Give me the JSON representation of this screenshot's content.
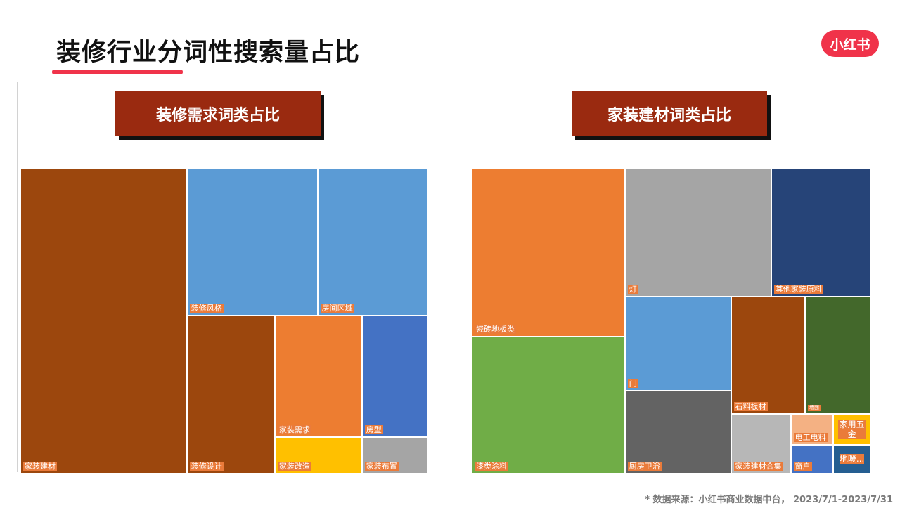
{
  "page": {
    "title": "装修行业分词性搜索量占比",
    "logo": "小红书",
    "source": "* 数据来源：小红书商业数据中台， 2023/7/1-2023/7/31"
  },
  "colors": {
    "accent": "#f0334a",
    "badge": "#9a2a10",
    "label_bg": "#ea7b3a"
  },
  "chart_data": [
    {
      "type": "treemap",
      "title": "装修需求词类占比",
      "items": [
        {
          "name": "家装建材",
          "value": 41.0,
          "color": "#9c470d"
        },
        {
          "name": "装修风格",
          "value": 15.5,
          "color": "#5b9bd5"
        },
        {
          "name": "房间区域",
          "value": 13.0,
          "color": "#5b9bd5"
        },
        {
          "name": "装修设计",
          "value": 9.5,
          "color": "#9c470d"
        },
        {
          "name": "家装需求",
          "value": 8.0,
          "color": "#ed7d31"
        },
        {
          "name": "家装改造",
          "value": 2.5,
          "color": "#ffc000"
        },
        {
          "name": "房型",
          "value": 6.0,
          "color": "#4472c4"
        },
        {
          "name": "家装布置",
          "value": 2.0,
          "color": "#a5a5a5"
        }
      ]
    },
    {
      "type": "treemap",
      "title": "家装建材词类占比",
      "items": [
        {
          "name": "瓷砖地板类",
          "value": 20.5,
          "color": "#ed7d31"
        },
        {
          "name": "漆类涂料",
          "value": 18.0,
          "color": "#70ad47"
        },
        {
          "name": "灯",
          "value": 14.0,
          "color": "#a5a5a5"
        },
        {
          "name": "其他家装原料",
          "value": 9.0,
          "color": "#264478"
        },
        {
          "name": "门",
          "value": 7.5,
          "color": "#5b9bd5"
        },
        {
          "name": "厨房卫浴",
          "value": 6.5,
          "color": "#636363"
        },
        {
          "name": "石料板材",
          "value": 6.5,
          "color": "#9c470d"
        },
        {
          "name": "墙面",
          "value": 5.5,
          "color": "#43682b"
        },
        {
          "name": "家装建材合集",
          "value": 3.0,
          "color": "#b7b7b7"
        },
        {
          "name": "电工电料",
          "value": 2.5,
          "color": "#f4b183"
        },
        {
          "name": "窗户",
          "value": 2.0,
          "color": "#4472c4"
        },
        {
          "name": "家用五金",
          "value": 2.0,
          "color": "#ffc000"
        },
        {
          "name": "地暖...",
          "value": 1.5,
          "color": "#255e91"
        }
      ]
    }
  ]
}
